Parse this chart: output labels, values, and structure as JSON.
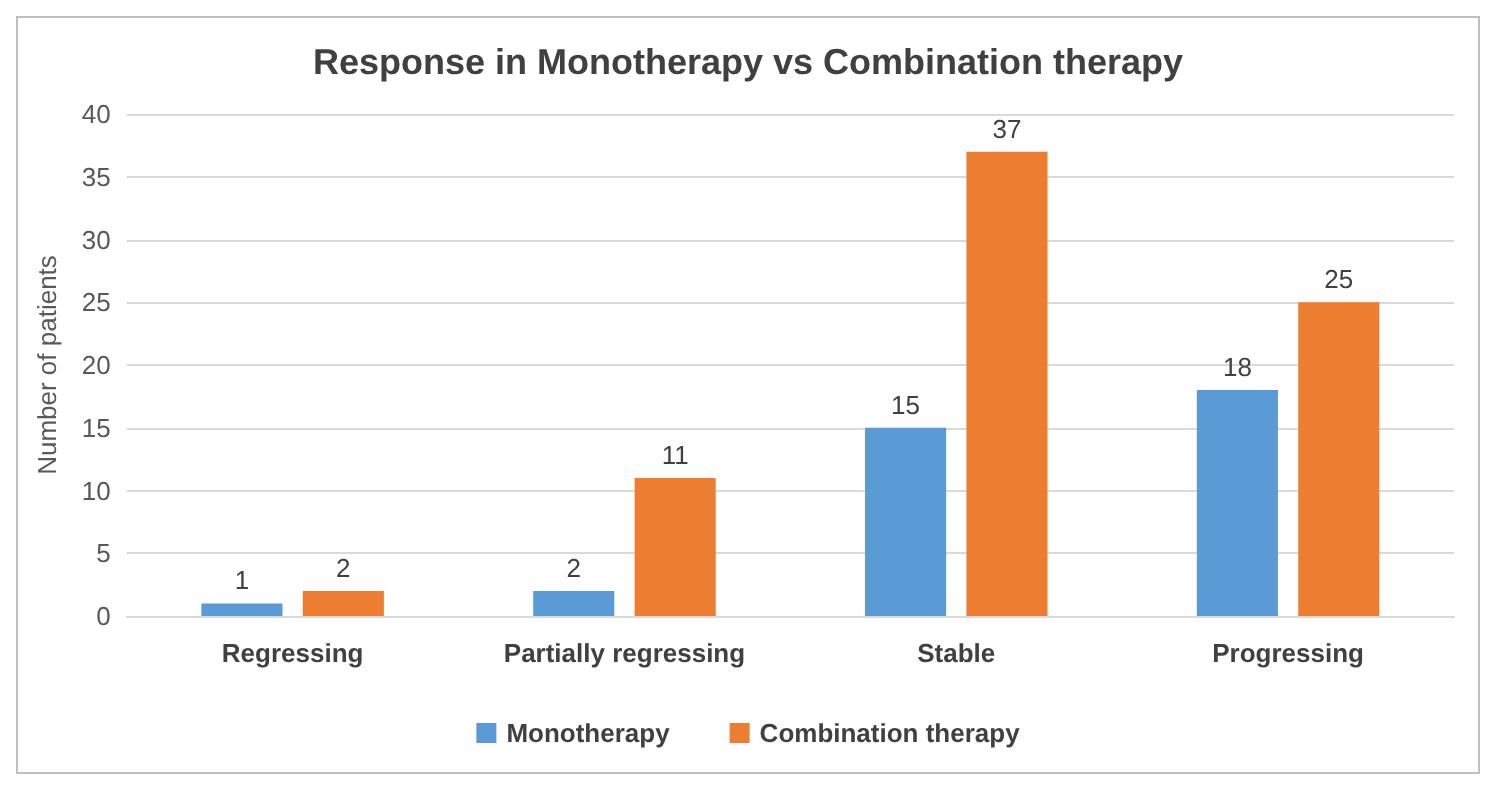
{
  "chart_data": {
    "type": "bar",
    "title": "Response in Monotherapy vs Combination therapy",
    "ylabel": "Number of patients",
    "categories": [
      "Regressing",
      "Partially regressing",
      "Stable",
      "Progressing"
    ],
    "series": [
      {
        "name": "Monotherapy",
        "color": "#5b9bd5",
        "values": [
          1,
          2,
          15,
          18
        ]
      },
      {
        "name": "Combination therapy",
        "color": "#ed7d31",
        "values": [
          2,
          11,
          37,
          25
        ]
      }
    ],
    "ylim": [
      0,
      40
    ],
    "yticks": [
      0,
      5,
      10,
      15,
      20,
      25,
      30,
      35,
      40
    ],
    "grid": "y",
    "legend": "bottom",
    "data_labels": true
  }
}
